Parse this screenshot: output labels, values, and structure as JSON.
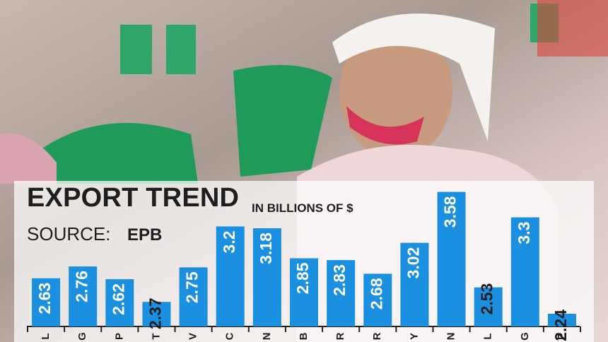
{
  "chart_data": {
    "type": "bar",
    "title": "EXPORT TREND",
    "subtitle": "IN BILLIONS OF $",
    "source_label": "SOURCE:",
    "source": "EPB",
    "categories": [
      "L",
      "G",
      "P",
      "T",
      "V",
      "C",
      "N",
      "B",
      "R",
      "R",
      "Y",
      "N",
      "L",
      "G",
      "P"
    ],
    "values": [
      2.63,
      2.76,
      2.62,
      2.37,
      2.75,
      3.2,
      3.18,
      2.85,
      2.83,
      2.68,
      3.02,
      3.58,
      2.53,
      3.3,
      2.24
    ],
    "color": "#1b8fe0",
    "ylim": [
      2.1,
      3.6
    ]
  }
}
